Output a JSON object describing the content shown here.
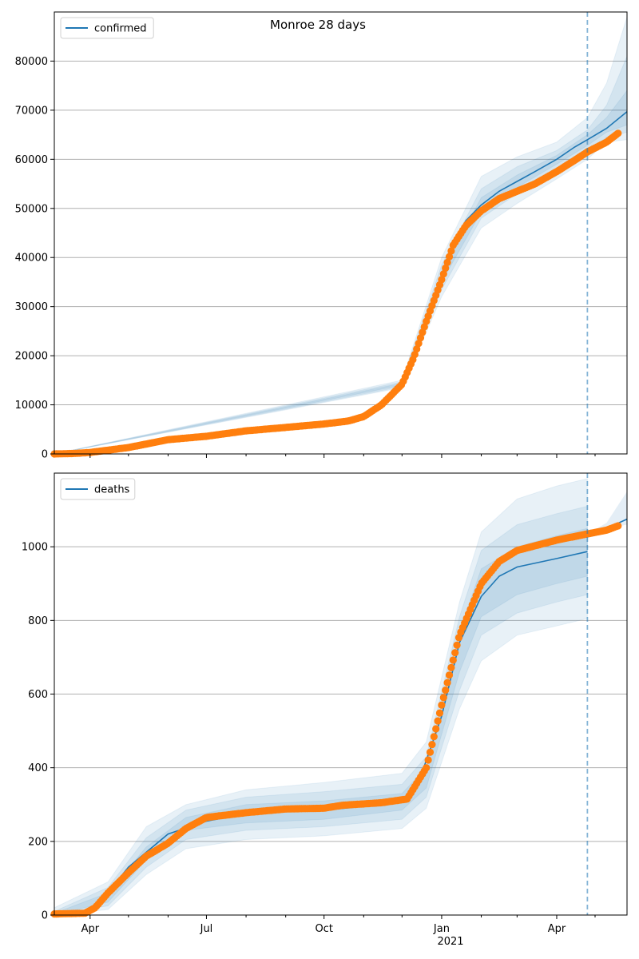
{
  "title": "Monroe 28 days",
  "colors": {
    "model_line": "#1f77b4",
    "band_fill": "#1f77b4",
    "observed_points": "#ff7f0e",
    "forecast_marker": "#1f77b4",
    "grid": "#b0b0b0"
  },
  "x_axis": {
    "ticks": [
      {
        "label": "Apr",
        "date": "2020-04-01"
      },
      {
        "label": "Jul",
        "date": "2020-07-01"
      },
      {
        "label": "Oct",
        "date": "2020-10-01"
      },
      {
        "label": "Jan",
        "date": "2021-01-01"
      },
      {
        "label": "Apr",
        "date": "2021-04-01"
      }
    ],
    "year_label": "2021",
    "range": [
      "2020-03-04",
      "2021-05-26"
    ],
    "forecast_start": "2021-04-25"
  },
  "chart_data": [
    {
      "type": "line",
      "legend": "confirmed",
      "legend_position": "top-left",
      "grid": "horizontal",
      "ylim": [
        0,
        90000
      ],
      "yticks": [
        {
          "label": "0",
          "value": 0
        },
        {
          "label": "10000",
          "value": 10000
        },
        {
          "label": "20000",
          "value": 20000
        },
        {
          "label": "30000",
          "value": 30000
        },
        {
          "label": "40000",
          "value": 40000
        },
        {
          "label": "50000",
          "value": 50000
        },
        {
          "label": "60000",
          "value": 60000
        },
        {
          "label": "70000",
          "value": 70000
        },
        {
          "label": "80000",
          "value": 80000
        }
      ],
      "model": [
        [
          "2020-03-04",
          0
        ],
        [
          "2020-03-20",
          100
        ],
        [
          "2020-04-01",
          300
        ],
        [
          "2020-05-01",
          1300
        ],
        [
          "2020-06-01",
          2900
        ],
        [
          "2020-07-01",
          3600
        ],
        [
          "2020-08-01",
          4700
        ],
        [
          "2020-09-01",
          5400
        ],
        [
          "2020-10-01",
          6100
        ],
        [
          "2020-10-20",
          6700
        ],
        [
          "2020-11-01",
          7600
        ],
        [
          "2020-11-15",
          10000
        ],
        [
          "2020-12-01",
          14200
        ],
        [
          "2020-12-10",
          19500
        ],
        [
          "2020-12-20",
          27000
        ],
        [
          "2021-01-01",
          36000
        ],
        [
          "2021-01-10",
          43000
        ],
        [
          "2021-01-20",
          47500
        ],
        [
          "2021-02-01",
          50700
        ],
        [
          "2021-02-15",
          53500
        ],
        [
          "2021-03-01",
          55500
        ],
        [
          "2021-03-15",
          57500
        ],
        [
          "2021-04-01",
          60000
        ],
        [
          "2021-04-15",
          62500
        ],
        [
          "2021-04-25",
          64000
        ],
        [
          "2021-05-10",
          66300
        ],
        [
          "2021-05-26",
          69700
        ]
      ],
      "bands": [
        {
          "upper": [
            [
              "2020-03-04",
              0
            ],
            [
              "2020-12-01",
              15000
            ],
            [
              "2021-01-01",
              40000
            ],
            [
              "2021-02-01",
              56500
            ],
            [
              "2021-03-01",
              60500
            ],
            [
              "2021-04-01",
              63500
            ],
            [
              "2021-04-25",
              68500
            ],
            [
              "2021-05-10",
              75500
            ],
            [
              "2021-05-26",
              89000
            ]
          ],
          "lower": [
            [
              "2020-03-04",
              0
            ],
            [
              "2020-12-01",
              13500
            ],
            [
              "2021-01-01",
              32000
            ],
            [
              "2021-02-01",
              46000
            ],
            [
              "2021-03-01",
              51000
            ],
            [
              "2021-04-01",
              56000
            ],
            [
              "2021-04-25",
              60000
            ],
            [
              "2021-05-10",
              63500
            ],
            [
              "2021-05-26",
              64000
            ]
          ]
        },
        {
          "upper": [
            [
              "2020-03-04",
              0
            ],
            [
              "2020-12-01",
              14700
            ],
            [
              "2021-01-01",
              38500
            ],
            [
              "2021-02-01",
              54000
            ],
            [
              "2021-03-01",
              58500
            ],
            [
              "2021-04-01",
              61800
            ],
            [
              "2021-04-25",
              66000
            ],
            [
              "2021-05-10",
              71000
            ],
            [
              "2021-05-26",
              81000
            ]
          ],
          "lower": [
            [
              "2020-03-04",
              0
            ],
            [
              "2020-12-01",
              13700
            ],
            [
              "2021-01-01",
              33500
            ],
            [
              "2021-02-01",
              48000
            ],
            [
              "2021-03-01",
              53000
            ],
            [
              "2021-04-01",
              58000
            ],
            [
              "2021-04-25",
              61500
            ],
            [
              "2021-05-10",
              64500
            ],
            [
              "2021-05-26",
              65500
            ]
          ]
        },
        {
          "upper": [
            [
              "2020-03-04",
              0
            ],
            [
              "2020-12-01",
              14400
            ],
            [
              "2021-01-01",
              37000
            ],
            [
              "2021-02-01",
              52200
            ],
            [
              "2021-03-01",
              56800
            ],
            [
              "2021-04-01",
              60800
            ],
            [
              "2021-04-25",
              65000
            ],
            [
              "2021-05-10",
              68500
            ],
            [
              "2021-05-26",
              74000
            ]
          ],
          "lower": [
            [
              "2020-03-04",
              0
            ],
            [
              "2020-12-01",
              14000
            ],
            [
              "2021-01-01",
              35000
            ],
            [
              "2021-02-01",
              49300
            ],
            [
              "2021-03-01",
              54300
            ],
            [
              "2021-04-01",
              59000
            ],
            [
              "2021-04-25",
              62800
            ],
            [
              "2021-05-10",
              65500
            ],
            [
              "2021-05-26",
              67000
            ]
          ]
        }
      ],
      "observed": [
        [
          "2020-03-04",
          0
        ],
        [
          "2020-03-20",
          100
        ],
        [
          "2020-04-01",
          300
        ],
        [
          "2020-05-01",
          1300
        ],
        [
          "2020-06-01",
          2900
        ],
        [
          "2020-07-01",
          3600
        ],
        [
          "2020-08-01",
          4700
        ],
        [
          "2020-09-01",
          5400
        ],
        [
          "2020-10-01",
          6100
        ],
        [
          "2020-10-20",
          6700
        ],
        [
          "2020-11-01",
          7600
        ],
        [
          "2020-11-15",
          10000
        ],
        [
          "2020-12-01",
          14200
        ],
        [
          "2020-12-10",
          19500
        ],
        [
          "2020-12-20",
          27000
        ],
        [
          "2021-01-01",
          35500
        ],
        [
          "2021-01-10",
          42500
        ],
        [
          "2021-01-20",
          46500
        ],
        [
          "2021-02-01",
          49500
        ],
        [
          "2021-02-15",
          52000
        ],
        [
          "2021-03-01",
          53500
        ],
        [
          "2021-03-15",
          55000
        ],
        [
          "2021-04-01",
          57500
        ],
        [
          "2021-04-15",
          59800
        ],
        [
          "2021-04-25",
          61500
        ],
        [
          "2021-05-10",
          63500
        ],
        [
          "2021-05-20",
          65500
        ]
      ]
    },
    {
      "type": "line",
      "legend": "deaths",
      "legend_position": "top-left",
      "grid": "horizontal",
      "ylim": [
        0,
        1200
      ],
      "yticks": [
        {
          "label": "0",
          "value": 0
        },
        {
          "label": "200",
          "value": 200
        },
        {
          "label": "400",
          "value": 400
        },
        {
          "label": "600",
          "value": 600
        },
        {
          "label": "800",
          "value": 800
        },
        {
          "label": "1000",
          "value": 1000
        }
      ],
      "model": [
        [
          "2020-03-04",
          0
        ],
        [
          "2020-03-25",
          5
        ],
        [
          "2020-04-10",
          40
        ],
        [
          "2020-05-01",
          130
        ],
        [
          "2020-06-01",
          220
        ],
        [
          "2020-07-01",
          255
        ],
        [
          "2020-08-01",
          275
        ],
        [
          "2020-09-01",
          282
        ],
        [
          "2020-10-01",
          285
        ],
        [
          "2020-11-01",
          295
        ],
        [
          "2020-12-01",
          310
        ],
        [
          "2020-12-15",
          370
        ],
        [
          "2021-01-01",
          540
        ],
        [
          "2021-01-15",
          740
        ],
        [
          "2021-02-01",
          865
        ],
        [
          "2021-02-15",
          920
        ],
        [
          "2021-03-01",
          945
        ],
        [
          "2021-04-01",
          968
        ],
        [
          "2021-04-25",
          987
        ]
      ],
      "forecast": [
        [
          "2021-04-25",
          1035
        ],
        [
          "2021-05-10",
          1050
        ],
        [
          "2021-05-26",
          1075
        ]
      ],
      "bands": [
        {
          "upper": [
            [
              "2020-03-04",
              20
            ],
            [
              "2020-04-15",
              90
            ],
            [
              "2020-05-15",
              240
            ],
            [
              "2020-06-15",
              300
            ],
            [
              "2020-08-01",
              340
            ],
            [
              "2020-10-01",
              360
            ],
            [
              "2020-12-01",
              385
            ],
            [
              "2020-12-20",
              470
            ],
            [
              "2021-01-15",
              850
            ],
            [
              "2021-02-01",
              1040
            ],
            [
              "2021-03-01",
              1130
            ],
            [
              "2021-04-01",
              1165
            ],
            [
              "2021-04-25",
              1185
            ]
          ],
          "lower": [
            [
              "2020-03-04",
              0
            ],
            [
              "2020-04-15",
              15
            ],
            [
              "2020-05-15",
              110
            ],
            [
              "2020-06-15",
              180
            ],
            [
              "2020-08-01",
              205
            ],
            [
              "2020-10-01",
              215
            ],
            [
              "2020-12-01",
              235
            ],
            [
              "2020-12-20",
              290
            ],
            [
              "2021-01-15",
              560
            ],
            [
              "2021-02-01",
              690
            ],
            [
              "2021-03-01",
              760
            ],
            [
              "2021-04-01",
              785
            ],
            [
              "2021-04-25",
              805
            ]
          ]
        },
        {
          "upper": [
            [
              "2020-03-04",
              10
            ],
            [
              "2020-04-15",
              75
            ],
            [
              "2020-05-15",
              210
            ],
            [
              "2020-06-15",
              285
            ],
            [
              "2020-08-01",
              320
            ],
            [
              "2020-10-01",
              335
            ],
            [
              "2020-12-01",
              355
            ],
            [
              "2020-12-20",
              430
            ],
            [
              "2021-01-15",
              810
            ],
            [
              "2021-02-01",
              990
            ],
            [
              "2021-03-01",
              1060
            ],
            [
              "2021-04-01",
              1090
            ],
            [
              "2021-04-25",
              1110
            ]
          ],
          "lower": [
            [
              "2020-03-04",
              0
            ],
            [
              "2020-04-15",
              25
            ],
            [
              "2020-05-15",
              130
            ],
            [
              "2020-06-15",
              205
            ],
            [
              "2020-08-01",
              230
            ],
            [
              "2020-10-01",
              240
            ],
            [
              "2020-12-01",
              260
            ],
            [
              "2020-12-20",
              320
            ],
            [
              "2021-01-15",
              610
            ],
            [
              "2021-02-01",
              760
            ],
            [
              "2021-03-01",
              820
            ],
            [
              "2021-04-01",
              850
            ],
            [
              "2021-04-25",
              870
            ]
          ]
        },
        {
          "upper": [
            [
              "2020-03-04",
              5
            ],
            [
              "2020-04-15",
              60
            ],
            [
              "2020-05-15",
              185
            ],
            [
              "2020-06-15",
              265
            ],
            [
              "2020-08-01",
              300
            ],
            [
              "2020-10-01",
              310
            ],
            [
              "2020-12-01",
              330
            ],
            [
              "2020-12-20",
              400
            ],
            [
              "2021-01-15",
              770
            ],
            [
              "2021-02-01",
              940
            ],
            [
              "2021-03-01",
              1000
            ],
            [
              "2021-04-01",
              1030
            ],
            [
              "2021-04-25",
              1050
            ]
          ],
          "lower": [
            [
              "2020-03-04",
              0
            ],
            [
              "2020-04-15",
              35
            ],
            [
              "2020-05-15",
              150
            ],
            [
              "2020-06-15",
              230
            ],
            [
              "2020-08-01",
              250
            ],
            [
              "2020-10-01",
              260
            ],
            [
              "2020-12-01",
              285
            ],
            [
              "2020-12-20",
              345
            ],
            [
              "2021-01-15",
              660
            ],
            [
              "2021-02-01",
              810
            ],
            [
              "2021-03-01",
              870
            ],
            [
              "2021-04-01",
              900
            ],
            [
              "2021-04-25",
              920
            ]
          ]
        }
      ],
      "forecast_bands": [
        {
          "upper": [
            [
              "2021-04-25",
              1035
            ],
            [
              "2021-05-10",
              1065
            ],
            [
              "2021-05-26",
              1150
            ]
          ],
          "lower": [
            [
              "2021-04-25",
              1035
            ],
            [
              "2021-05-10",
              1050
            ],
            [
              "2021-05-26",
              1060
            ]
          ]
        }
      ],
      "observed": [
        [
          "2020-03-04",
          3
        ],
        [
          "2020-03-28",
          5
        ],
        [
          "2020-04-05",
          20
        ],
        [
          "2020-04-15",
          60
        ],
        [
          "2020-05-01",
          115
        ],
        [
          "2020-05-15",
          160
        ],
        [
          "2020-06-01",
          195
        ],
        [
          "2020-06-15",
          235
        ],
        [
          "2020-07-01",
          265
        ],
        [
          "2020-08-01",
          278
        ],
        [
          "2020-09-01",
          288
        ],
        [
          "2020-10-01",
          290
        ],
        [
          "2020-10-15",
          298
        ],
        [
          "2020-11-15",
          305
        ],
        [
          "2020-12-05",
          315
        ],
        [
          "2020-12-20",
          400
        ],
        [
          "2020-12-25",
          470
        ],
        [
          "2021-01-01",
          570
        ],
        [
          "2021-01-15",
          760
        ],
        [
          "2021-02-01",
          900
        ],
        [
          "2021-02-15",
          960
        ],
        [
          "2021-03-01",
          990
        ],
        [
          "2021-04-01",
          1018
        ],
        [
          "2021-04-25",
          1035
        ],
        [
          "2021-05-10",
          1045
        ],
        [
          "2021-05-20",
          1058
        ]
      ]
    }
  ]
}
